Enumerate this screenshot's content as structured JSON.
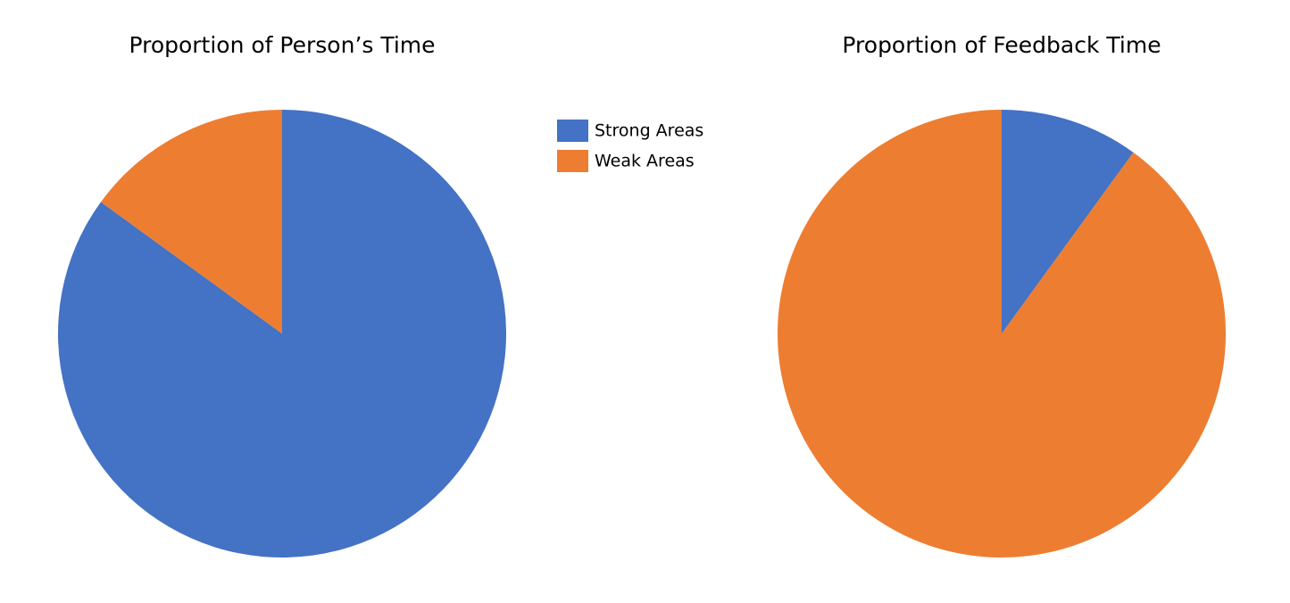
{
  "legend": {
    "entries": [
      {
        "name": "Strong Areas",
        "color": "#4472c4"
      },
      {
        "name": "Weak Areas",
        "color": "#ed7d31"
      }
    ]
  },
  "chart_data": [
    {
      "type": "pie",
      "title": "Proportion of Person’s Time",
      "values": [
        85,
        15
      ]
    },
    {
      "type": "pie",
      "title": "Proportion of Feedback Time",
      "values": [
        10,
        90
      ]
    }
  ]
}
